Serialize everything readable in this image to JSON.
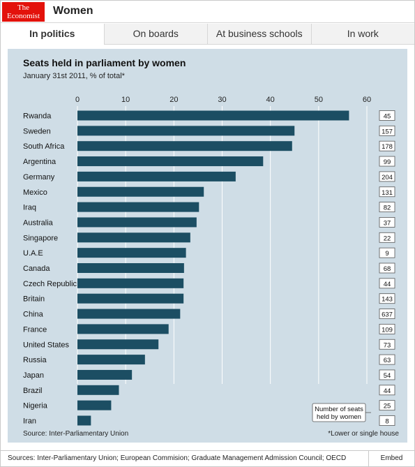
{
  "header": {
    "logo_line1": "The",
    "logo_line2": "Economist",
    "title": "Women"
  },
  "tabs": [
    {
      "label": "In politics",
      "active": true
    },
    {
      "label": "On boards",
      "active": false
    },
    {
      "label": "At business schools",
      "active": false
    },
    {
      "label": "In work",
      "active": false
    }
  ],
  "chart_data": {
    "type": "bar",
    "orientation": "horizontal",
    "title": "Seats held in parliament by women",
    "subtitle": "January 31st 2011, % of total*",
    "categories": [
      "Rwanda",
      "Sweden",
      "South Africa",
      "Argentina",
      "Germany",
      "Mexico",
      "Iraq",
      "Australia",
      "Singapore",
      "U.A.E",
      "Canada",
      "Czech Republic",
      "Britain",
      "China",
      "France",
      "United States",
      "Russia",
      "Japan",
      "Brazil",
      "Nigeria",
      "Iran"
    ],
    "values": [
      56.3,
      45.0,
      44.5,
      38.5,
      32.8,
      26.2,
      25.2,
      24.7,
      23.4,
      22.5,
      22.1,
      22.0,
      22.0,
      21.3,
      18.9,
      16.8,
      14.0,
      11.3,
      8.6,
      7.0,
      2.8
    ],
    "seats": [
      "45",
      "157",
      "178",
      "99",
      "204",
      "131",
      "82",
      "37",
      "22",
      "9",
      "68",
      "44",
      "143",
      "637",
      "109",
      "73",
      "63",
      "54",
      "44",
      "25",
      "8"
    ],
    "xlim": [
      0,
      60
    ],
    "xticks": [
      0,
      10,
      20,
      30,
      40,
      50,
      60
    ],
    "grid": true,
    "bar_color": "#1c4e63",
    "background_color": "#cfdde6",
    "grid_color": "#ffffff",
    "seats_legend_line1": "Number of seats",
    "seats_legend_line2": "held by women",
    "source": "Source: Inter-Parliamentary Union",
    "footnote": "*Lower or single house"
  },
  "footer": {
    "sources": "Sources: Inter-Parliamentary Union; European Commision; Graduate Management Admission Council; OECD",
    "embed_label": "Embed"
  }
}
